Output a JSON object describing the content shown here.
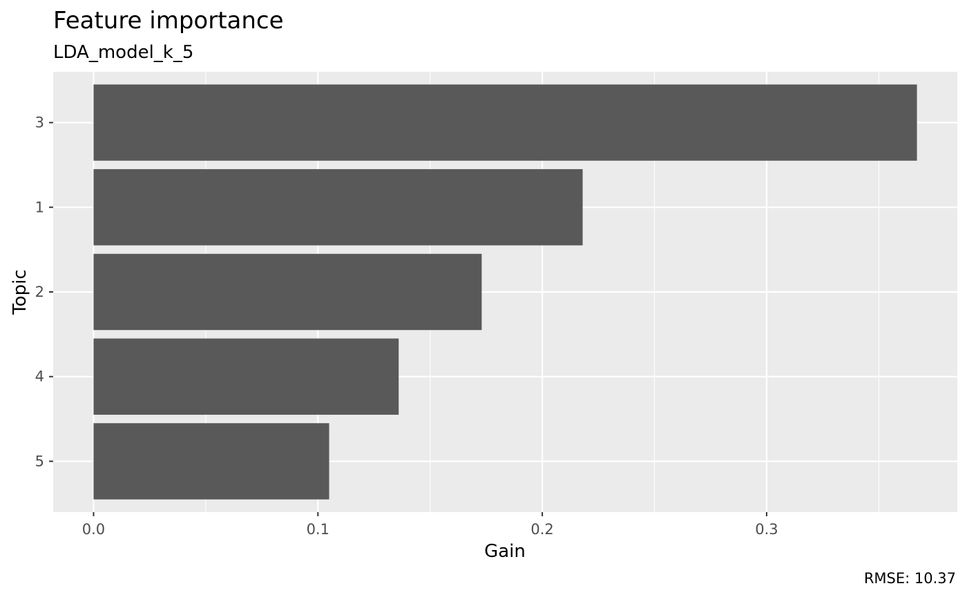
{
  "chart_data": {
    "type": "bar",
    "orientation": "horizontal",
    "title": "Feature importance",
    "subtitle": "LDA_model_k_5",
    "xlabel": "Gain",
    "ylabel": "Topic",
    "caption": "RMSE: 10.37",
    "categories": [
      "3",
      "1",
      "2",
      "4",
      "5"
    ],
    "values": [
      0.367,
      0.218,
      0.173,
      0.136,
      0.105
    ],
    "xlim": [
      -0.018,
      0.385
    ],
    "x_ticks": [
      "0.0",
      "0.1",
      "0.2",
      "0.3"
    ],
    "x_tick_values": [
      0,
      0.1,
      0.2,
      0.3
    ],
    "x_minor_values": [
      0.05,
      0.15,
      0.25,
      0.35
    ],
    "grid": true,
    "colors": {
      "panel_background": "#EBEBEB",
      "grid_line": "#FFFFFF",
      "bar_fill": "#595959",
      "tick_mark": "#333333"
    }
  }
}
